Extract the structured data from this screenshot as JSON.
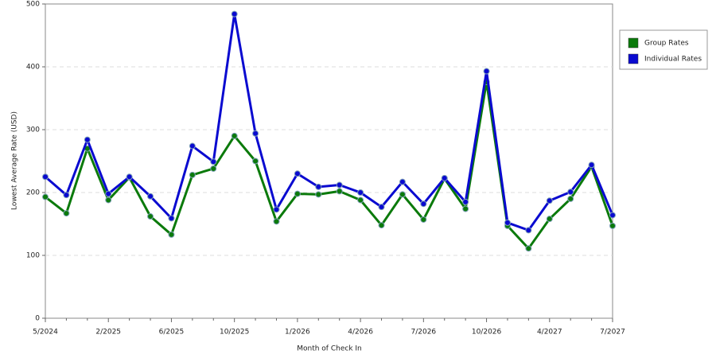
{
  "chart_data": {
    "type": "line",
    "y_label": "Lowest Average Rate (USD)",
    "x_label": "Month of Check In",
    "categories": [
      "5/2024",
      null,
      null,
      "2/2025",
      null,
      null,
      "6/2025",
      null,
      null,
      "10/2025",
      null,
      null,
      "1/2026",
      null,
      null,
      "4/2026",
      null,
      null,
      "7/2026",
      null,
      null,
      "10/2026",
      null,
      null,
      "4/2027",
      null,
      null,
      "7/2027"
    ],
    "series": [
      {
        "name": "Group Rates",
        "color": "#0b7a0b",
        "values": [
          193,
          167,
          270,
          188,
          224,
          162,
          133,
          228,
          238,
          290,
          250,
          154,
          198,
          197,
          202,
          188,
          148,
          197,
          157,
          222,
          174,
          376,
          147,
          111,
          158,
          190,
          241,
          147
        ]
      },
      {
        "name": "Individual Rates",
        "color": "#0a0ad0",
        "values": [
          225,
          196,
          284,
          198,
          225,
          194,
          159,
          274,
          249,
          484,
          294,
          173,
          230,
          209,
          212,
          200,
          177,
          217,
          182,
          223,
          185,
          393,
          152,
          140,
          187,
          201,
          244,
          164
        ]
      }
    ],
    "ylim": [
      0,
      500
    ],
    "yticks": [
      0,
      100,
      200,
      300,
      400,
      500
    ],
    "grid": true,
    "legend": "right"
  }
}
